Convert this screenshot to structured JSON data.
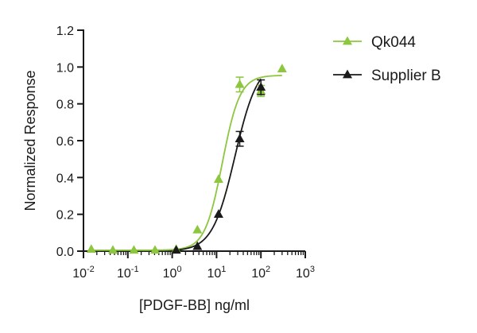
{
  "chart_data": {
    "type": "scatter",
    "title": "",
    "xlabel": "[PDGF-BB] ng/ml",
    "ylabel": "Normalized Response",
    "x_scale": "log",
    "xlim": [
      0.01,
      1000
    ],
    "ylim": [
      0.0,
      1.2
    ],
    "x_ticks": [
      {
        "base": "10",
        "exp": "-2"
      },
      {
        "base": "10",
        "exp": "-1"
      },
      {
        "base": "10",
        "exp": "0"
      },
      {
        "base": "10",
        "exp": "1"
      },
      {
        "base": "10",
        "exp": "2"
      },
      {
        "base": "10",
        "exp": "3"
      }
    ],
    "y_ticks": [
      "0.0",
      "0.2",
      "0.4",
      "0.6",
      "0.8",
      "1.0",
      "1.2"
    ],
    "grid": false,
    "legend_position": "top-right",
    "series": [
      {
        "name": "Qk044",
        "color": "#8dc63f",
        "marker": "triangle",
        "points": [
          {
            "x": 0.015,
            "y": 0.01
          },
          {
            "x": 0.046,
            "y": 0.005
          },
          {
            "x": 0.137,
            "y": 0.005
          },
          {
            "x": 0.41,
            "y": 0.005
          },
          {
            "x": 1.23,
            "y": 0.01
          },
          {
            "x": 3.7,
            "y": 0.115
          },
          {
            "x": 11.1,
            "y": 0.39
          },
          {
            "x": 33.3,
            "y": 0.905,
            "err": 0.04
          },
          {
            "x": 100,
            "y": 0.87,
            "err": 0.03
          },
          {
            "x": 300,
            "y": 0.99
          }
        ],
        "fit": {
          "bottom": 0.005,
          "top": 0.955,
          "ec50": 13.5,
          "hill": 2.2
        }
      },
      {
        "name": "Supplier B",
        "color": "#1a1a1a",
        "marker": "triangle",
        "points": [
          {
            "x": 1.23,
            "y": 0.005
          },
          {
            "x": 3.7,
            "y": 0.025
          },
          {
            "x": 11.1,
            "y": 0.2
          },
          {
            "x": 33.3,
            "y": 0.61,
            "err": 0.04
          },
          {
            "x": 100,
            "y": 0.89,
            "err": 0.04
          }
        ],
        "fit": {
          "bottom": 0.0,
          "top": 1.03,
          "ec50": 26,
          "hill": 1.7
        }
      }
    ]
  }
}
